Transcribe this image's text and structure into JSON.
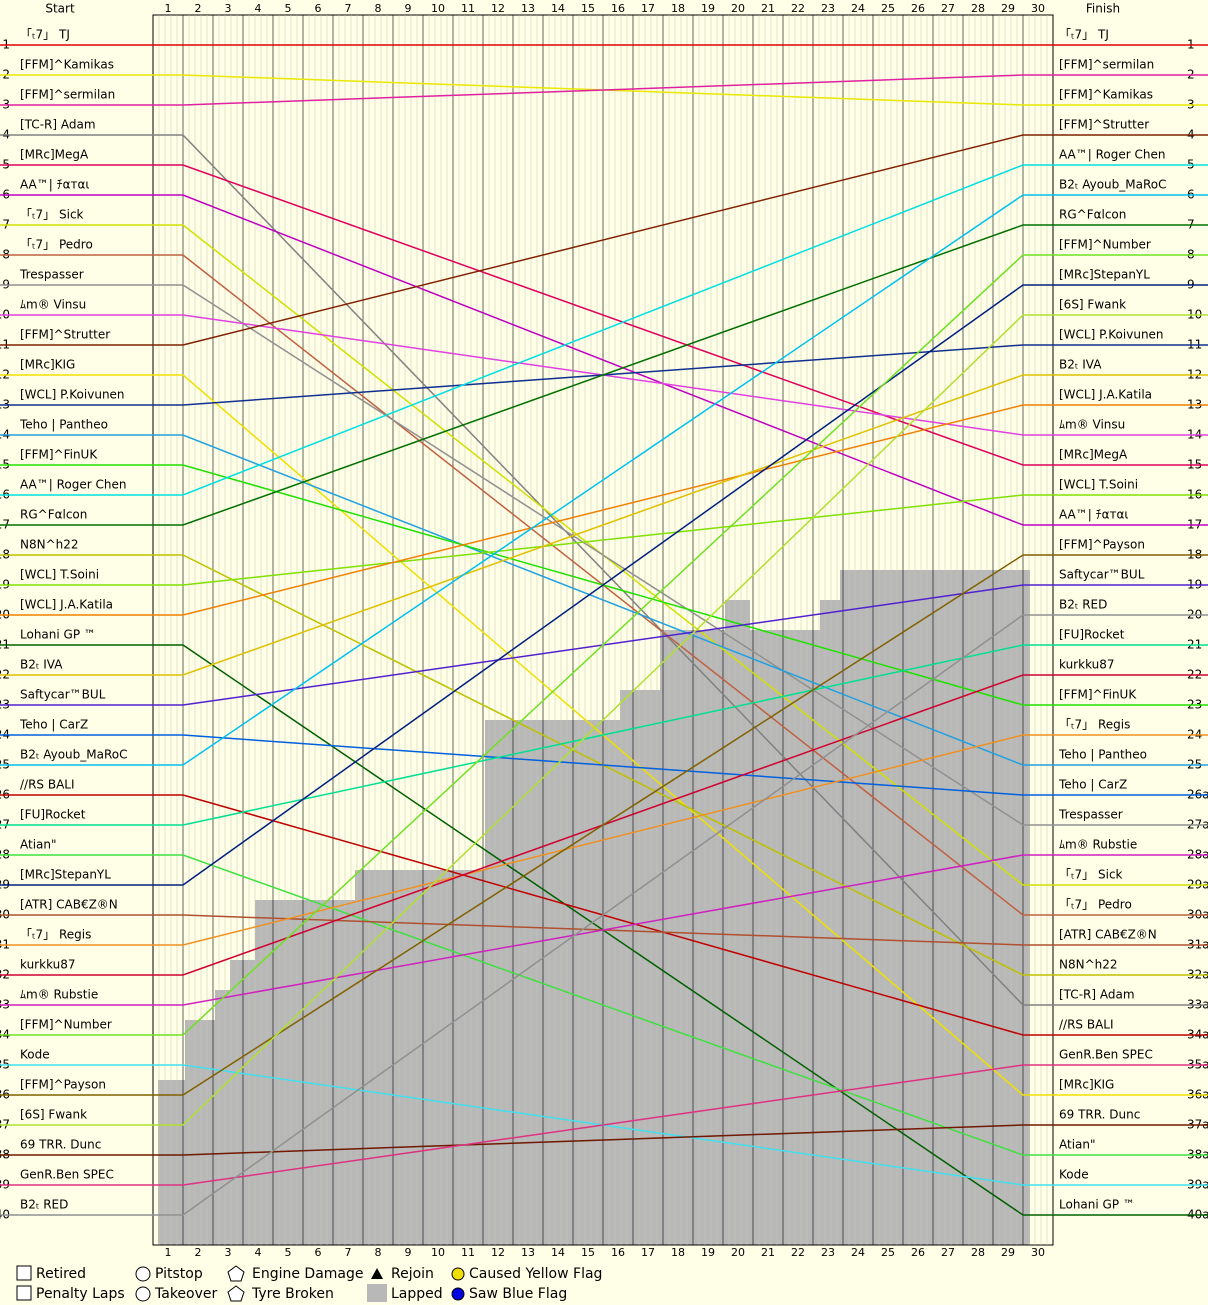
{
  "chart_data": {
    "type": "lapchart",
    "start_label": "Start",
    "finish_label": "Finish",
    "laps": [
      1,
      2,
      3,
      4,
      5,
      6,
      7,
      8,
      9,
      10,
      11,
      12,
      13,
      14,
      15,
      16,
      17,
      18,
      19,
      20,
      21,
      22,
      23,
      24,
      25,
      26,
      27,
      28,
      29,
      30
    ],
    "positions": [
      1,
      2,
      3,
      4,
      5,
      6,
      7,
      8,
      9,
      10,
      11,
      12,
      13,
      14,
      15,
      16,
      17,
      18,
      19,
      20,
      21,
      22,
      23,
      24,
      25,
      26,
      27,
      28,
      29,
      30,
      31,
      32,
      33,
      34,
      35,
      36,
      37,
      38,
      39,
      40
    ],
    "finish_positions": [
      1,
      2,
      3,
      4,
      5,
      6,
      7,
      8,
      9,
      10,
      11,
      12,
      13,
      14,
      15,
      16,
      17,
      18,
      19,
      20,
      21,
      22,
      23,
      24,
      25,
      {
        "value": 26,
        "label": "26a"
      },
      {
        "value": 27,
        "label": "27a"
      },
      {
        "value": 28,
        "label": "28a"
      },
      {
        "value": 29,
        "label": "29a"
      },
      {
        "value": 30,
        "label": "30a"
      },
      {
        "value": 31,
        "label": "31a"
      },
      {
        "value": 32,
        "label": "32a"
      },
      {
        "value": 33,
        "label": "33a"
      },
      {
        "value": 34,
        "label": "34a"
      },
      {
        "value": 35,
        "label": "35a"
      },
      {
        "value": 36,
        "label": "36a"
      },
      {
        "value": 37,
        "label": "37a"
      },
      {
        "value": 38,
        "label": "38a"
      },
      {
        "value": 39,
        "label": "39a"
      },
      {
        "value": 40,
        "label": "40a"
      }
    ],
    "series": [
      {
        "name": "「ₜ7」 TJ",
        "color": "#e00000",
        "start": 1,
        "finish": 1
      },
      {
        "name": "[FFM]^Kamikas",
        "color": "#e8e800",
        "start": 2,
        "finish": 3
      },
      {
        "name": "[FFM]^sermilan",
        "color": "#e020a0",
        "start": 3,
        "finish": 2
      },
      {
        "name": "[TC-R] Adam",
        "color": "#808080",
        "start": 4,
        "finish": 33
      },
      {
        "name": "[MRc]MegA",
        "color": "#e0005a",
        "start": 5,
        "finish": 15
      },
      {
        "name": "AA™| ﾁαтαι",
        "color": "#c000c0",
        "start": 6,
        "finish": 17
      },
      {
        "name": "「ₜ7」 Sick",
        "color": "#d0e000",
        "start": 7,
        "finish": 29
      },
      {
        "name": "「ₜ7」 Pedro",
        "color": "#c06040",
        "start": 8,
        "finish": 30
      },
      {
        "name": "Trespasser",
        "color": "#909090",
        "start": 9,
        "finish": 27
      },
      {
        "name": "ﾑm® Vinsu",
        "color": "#e040e0",
        "start": 10,
        "finish": 14
      },
      {
        "name": "[FFM]^Strutter",
        "color": "#802000",
        "start": 11,
        "finish": 4
      },
      {
        "name": "[MRc]KIG",
        "color": "#f0e000",
        "start": 12,
        "finish": 36
      },
      {
        "name": "[WCL] P.Koivunen",
        "color": "#103090",
        "start": 13,
        "finish": 11
      },
      {
        "name": "Teho | Pantheo",
        "color": "#20a0e0",
        "start": 14,
        "finish": 25
      },
      {
        "name": "[FFM]^FinUK",
        "color": "#20e000",
        "start": 15,
        "finish": 23
      },
      {
        "name": "AA™| Roger Chen",
        "color": "#00e0e0",
        "start": 16,
        "finish": 5
      },
      {
        "name": "RG^Fαlcon",
        "color": "#007000",
        "start": 17,
        "finish": 7
      },
      {
        "name": "N8N^h22",
        "color": "#c0c000",
        "start": 18,
        "finish": 32
      },
      {
        "name": "[WCL] T.Soini",
        "color": "#80e000",
        "start": 19,
        "finish": 16
      },
      {
        "name": "[WCL] J.A.Katila",
        "color": "#f08000",
        "start": 20,
        "finish": 13
      },
      {
        "name": "Lohani GP ™",
        "color": "#006000",
        "start": 21,
        "finish": 40
      },
      {
        "name": "B2ₜ IVA",
        "color": "#e0c000",
        "start": 22,
        "finish": 12
      },
      {
        "name": "Saftycar™BUL",
        "color": "#5020d0",
        "start": 23,
        "finish": 19
      },
      {
        "name": "Teho | CarZ",
        "color": "#0060e0",
        "start": 24,
        "finish": 26
      },
      {
        "name": "B2ₜ Ayoub_MaRoC",
        "color": "#00c0f0",
        "start": 25,
        "finish": 6
      },
      {
        "name": "//RS BALI",
        "color": "#c00000",
        "start": 26,
        "finish": 34
      },
      {
        "name": "[FU]Rocket",
        "color": "#00e090",
        "start": 27,
        "finish": 21
      },
      {
        "name": "Atian\"",
        "color": "#40e040",
        "start": 28,
        "finish": 38
      },
      {
        "name": "[MRc]StepanYL",
        "color": "#002080",
        "start": 29,
        "finish": 9
      },
      {
        "name": "[ATR] CAB€Z®N",
        "color": "#b05030",
        "start": 30,
        "finish": 31
      },
      {
        "name": "「ₜ7」 Regis",
        "color": "#f09020",
        "start": 31,
        "finish": 24
      },
      {
        "name": "kurkku87",
        "color": "#d00030",
        "start": 32,
        "finish": 22
      },
      {
        "name": "ﾑm® Rubstie",
        "color": "#d020c0",
        "start": 33,
        "finish": 28
      },
      {
        "name": "[FFM]^Number",
        "color": "#70e020",
        "start": 34,
        "finish": 8
      },
      {
        "name": "Kode",
        "color": "#40e0f0",
        "start": 35,
        "finish": 39
      },
      {
        "name": "[FFM]^Payson",
        "color": "#806000",
        "start": 36,
        "finish": 18
      },
      {
        "name": "[6S] Fwank",
        "color": "#b0e030",
        "start": 37,
        "finish": 10
      },
      {
        "name": "69 TRR. Dunc",
        "color": "#701800",
        "start": 38,
        "finish": 37
      },
      {
        "name": "GenR.Ben SPEC",
        "color": "#e03080",
        "start": 39,
        "finish": 35
      },
      {
        "name": "B2ₜ RED",
        "color": "#909090",
        "start": 40,
        "finish": 20
      }
    ],
    "legend": [
      "Retired",
      "Penalty Laps",
      "Pitstop",
      "Takeover",
      "Engine Damage",
      "Tyre Broken",
      "Rejoin",
      "Lapped",
      "Caused Yellow Flag",
      "Saw Blue Flag"
    ]
  }
}
